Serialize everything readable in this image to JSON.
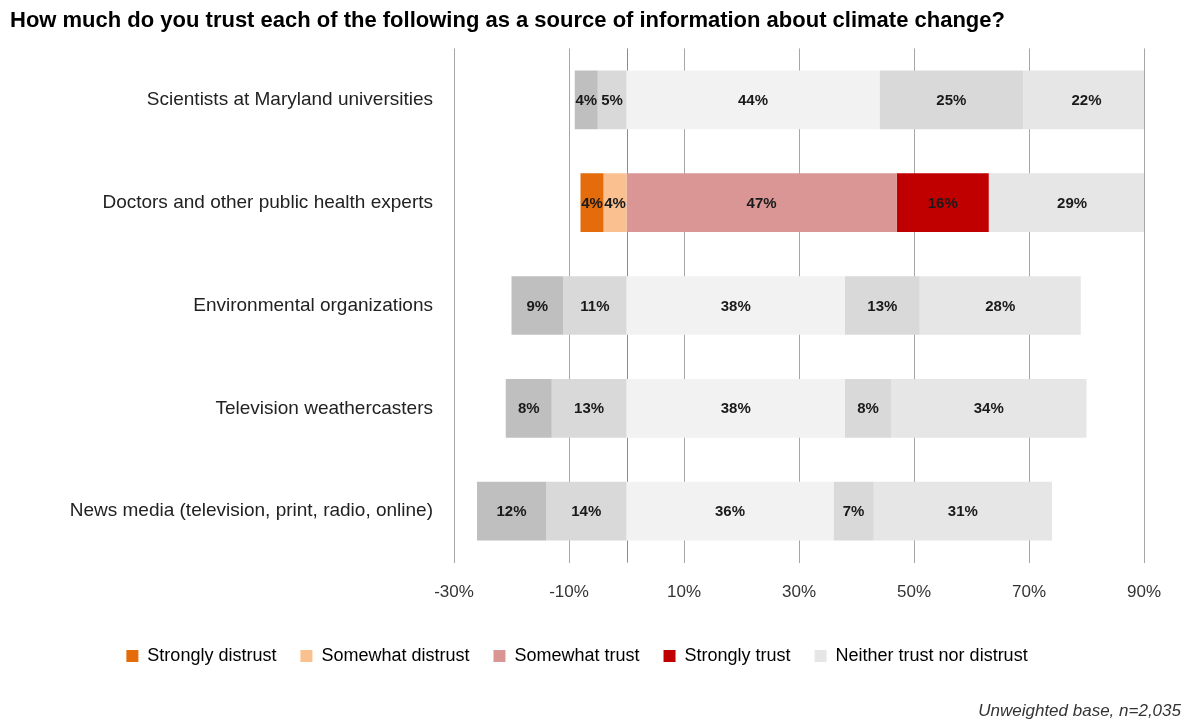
{
  "chart_data": {
    "type": "bar",
    "orientation": "horizontal",
    "title": "How much do you trust each of the following as a source of information about climate change?",
    "categories": [
      "Scientists at Maryland universities",
      "Doctors and other public health experts",
      "Environmental organizations",
      "Television weathercasters",
      "News media (television, print, radio, online)"
    ],
    "series": [
      {
        "name": "Strongly distrust",
        "color": "#e46c0a",
        "colors": [
          "#bfbfbf",
          "#e46c0a",
          "#bfbfbf",
          "#bfbfbf",
          "#bfbfbf"
        ],
        "values": [
          4,
          4,
          9,
          8,
          12
        ],
        "base": [
          -9,
          -8,
          -20,
          -21,
          -26
        ],
        "value_labels": [
          "4%",
          "4%",
          "9%",
          "8%",
          "12%"
        ]
      },
      {
        "name": "Somewhat distrust",
        "color": "#fac090",
        "colors": [
          "#d9d9d9",
          "#fac090",
          "#d9d9d9",
          "#d9d9d9",
          "#d9d9d9"
        ],
        "values": [
          5,
          4,
          11,
          13,
          14
        ],
        "base": [
          -5,
          -4,
          -11,
          -13,
          -14
        ],
        "value_labels": [
          "5%",
          "4%",
          "11%",
          "13%",
          "14%"
        ]
      },
      {
        "name": "Somewhat trust",
        "color": "#d99694",
        "colors": [
          "#f2f2f2",
          "#d99694",
          "#f2f2f2",
          "#f2f2f2",
          "#f2f2f2"
        ],
        "values": [
          44,
          47,
          38,
          38,
          36
        ],
        "base": [
          0,
          0,
          0,
          0,
          0
        ],
        "value_labels": [
          "44%",
          "47%",
          "38%",
          "38%",
          "36%"
        ]
      },
      {
        "name": "Strongly trust",
        "color": "#c00000",
        "colors": [
          "#d9d9d9",
          "#c00000",
          "#d9d9d9",
          "#d9d9d9",
          "#d9d9d9"
        ],
        "values": [
          25,
          16,
          13,
          8,
          7
        ],
        "base": [
          44,
          47,
          38,
          38,
          36
        ],
        "value_labels": [
          "25%",
          "16%",
          "13%",
          "8%",
          "7%"
        ]
      },
      {
        "name": "Neither trust nor distrust",
        "color": "#e6e6e6",
        "values": [
          22,
          29,
          28,
          34,
          31
        ],
        "base": [
          69,
          63,
          51,
          46,
          43
        ],
        "value_labels": [
          "22%",
          "29%",
          "28%",
          "34%",
          "31%"
        ]
      }
    ],
    "xlim": [
      -30,
      90
    ],
    "xticks": [
      {
        "value": -30,
        "label": "-30%"
      },
      {
        "value": -10,
        "label": "-10%"
      },
      {
        "value": 10,
        "label": "10%"
      },
      {
        "value": 30,
        "label": "30%"
      },
      {
        "value": 50,
        "label": "50%"
      },
      {
        "value": 70,
        "label": "70%"
      },
      {
        "value": 90,
        "label": "90%"
      }
    ],
    "grid": "x",
    "legend": "bottom",
    "annotations": [
      "Unweighted base, n=2,035"
    ]
  }
}
